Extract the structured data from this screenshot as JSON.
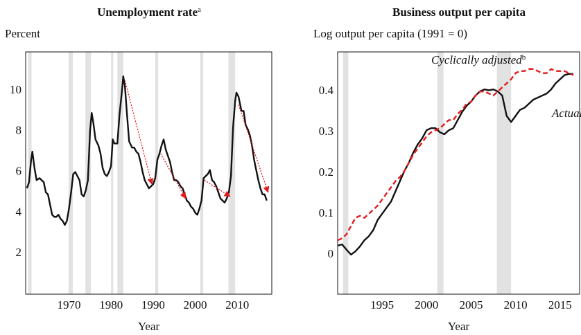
{
  "chart_data": [
    {
      "type": "line",
      "title": "Unemployment rate",
      "title_superscript": "a",
      "y_label": "Percent",
      "x_label": "Year",
      "xlim": [
        1959.7,
        2018.2
      ],
      "xticks": [
        1970,
        1980,
        1990,
        2000,
        2010
      ],
      "ylim": [
        0,
        11.9
      ],
      "yticks": [
        2,
        4,
        6,
        8,
        10
      ],
      "recessions": [
        [
          1960.3,
          1961.1
        ],
        [
          1969.9,
          1970.9
        ],
        [
          1973.9,
          1975.2
        ],
        [
          1980.0,
          1980.5
        ],
        [
          1981.5,
          1982.9
        ],
        [
          1990.5,
          1991.2
        ],
        [
          2001.2,
          2001.9
        ],
        [
          2007.9,
          2009.5
        ]
      ],
      "recession_color": "#e2e2e2",
      "x": [
        1960,
        1960.5,
        1961,
        1961.3,
        1961.8,
        1962.3,
        1963,
        1963.5,
        1964,
        1964.5,
        1965,
        1965.5,
        1966,
        1966.5,
        1967,
        1967.5,
        1968,
        1968.5,
        1969,
        1969.5,
        1970,
        1970.5,
        1971,
        1971.5,
        1972,
        1972.5,
        1973,
        1973.5,
        1974,
        1974.5,
        1975,
        1975.4,
        1975.8,
        1976.3,
        1977,
        1977.5,
        1978,
        1978.5,
        1979,
        1979.5,
        1980,
        1980.4,
        1980.8,
        1981.5,
        1982,
        1982.5,
        1982.9,
        1983.3,
        1983.8,
        1984.3,
        1985,
        1985.5,
        1986,
        1986.5,
        1987,
        1987.5,
        1988,
        1988.5,
        1989,
        1989.5,
        1990,
        1990.5,
        1991,
        1991.5,
        1992,
        1992.5,
        1993,
        1993.5,
        1994,
        1994.5,
        1995,
        1995.5,
        1996,
        1996.5,
        1997,
        1997.5,
        1998,
        1998.5,
        1999,
        1999.5,
        2000,
        2000.5,
        2001,
        2001.5,
        2002,
        2002.5,
        2003,
        2003.5,
        2004,
        2004.5,
        2005,
        2005.5,
        2006,
        2006.5,
        2007,
        2007.5,
        2008,
        2008.5,
        2009,
        2009.5,
        2009.8,
        2010.3,
        2011,
        2011.5,
        2012,
        2012.5,
        2013,
        2013.5,
        2014,
        2014.5,
        2015,
        2015.5,
        2016,
        2016.5,
        2017
      ],
      "series": [
        {
          "color": "#111111",
          "dashed": false,
          "values": [
            5.2,
            5.5,
            6.6,
            7.0,
            6.2,
            5.6,
            5.7,
            5.6,
            5.5,
            5.0,
            4.9,
            4.4,
            3.9,
            3.8,
            3.8,
            3.9,
            3.7,
            3.6,
            3.4,
            3.6,
            4.2,
            5.0,
            5.9,
            6.0,
            5.8,
            5.6,
            4.9,
            4.8,
            5.1,
            5.6,
            8.0,
            8.9,
            8.4,
            7.6,
            7.3,
            6.9,
            6.2,
            5.9,
            5.8,
            6.0,
            6.3,
            7.6,
            7.4,
            7.4,
            8.8,
            9.8,
            10.7,
            10.2,
            8.8,
            7.5,
            7.2,
            7.2,
            7.0,
            6.9,
            6.5,
            6.0,
            5.6,
            5.4,
            5.2,
            5.3,
            5.4,
            5.7,
            6.6,
            6.9,
            7.3,
            7.6,
            7.1,
            6.8,
            6.5,
            6.0,
            5.6,
            5.6,
            5.5,
            5.3,
            5.2,
            4.9,
            4.6,
            4.5,
            4.3,
            4.2,
            4.0,
            3.9,
            4.2,
            4.6,
            5.7,
            5.8,
            5.9,
            6.1,
            5.6,
            5.5,
            5.3,
            5.0,
            4.7,
            4.6,
            4.5,
            4.7,
            5.0,
            5.8,
            8.2,
            9.5,
            9.9,
            9.7,
            9.0,
            9.0,
            8.3,
            8.1,
            7.8,
            7.3,
            6.6,
            6.1,
            5.6,
            5.2,
            4.9,
            4.9,
            4.6
          ]
        }
      ],
      "arrows": [
        {
          "x": [
            1983.3,
            1989.7
          ],
          "y": [
            10.5,
            5.4
          ]
        },
        {
          "x": [
            1991.8,
            1997.7
          ],
          "y": [
            6.9,
            4.7
          ]
        },
        {
          "x": [
            2002.2,
            2008.3
          ],
          "y": [
            5.6,
            4.8
          ]
        },
        {
          "x": [
            2010.3,
            2017.3
          ],
          "y": [
            9.3,
            5.0
          ]
        }
      ],
      "arrow_color": "#e31a1c"
    },
    {
      "type": "line",
      "title": "Business output per capita",
      "y_label": "Log output per capita (1991 = 0)",
      "x_label": "Year",
      "xlim": [
        1990,
        2017.2
      ],
      "xticks": [
        1995,
        2000,
        2005,
        2010,
        2015
      ],
      "ylim": [
        -0.097,
        0.497
      ],
      "yticks": [
        0,
        0.1,
        0.2,
        0.3,
        0.4
      ],
      "recessions": [
        [
          1990.6,
          1991.2
        ],
        [
          2001.2,
          2001.9
        ],
        [
          2007.9,
          2009.5
        ]
      ],
      "recession_color": "#e2e2e2",
      "x": [
        1990,
        1990.5,
        1991,
        1991.5,
        1992,
        1992.5,
        1993,
        1993.5,
        1994,
        1994.5,
        1995,
        1995.5,
        1996,
        1996.5,
        1997,
        1997.5,
        1998,
        1998.5,
        1999,
        1999.5,
        2000,
        2000.5,
        2001,
        2001.5,
        2002,
        2002.5,
        2003,
        2003.5,
        2004,
        2004.5,
        2005,
        2005.5,
        2006,
        2006.5,
        2007,
        2007.5,
        2008,
        2008.5,
        2009,
        2009.5,
        2010,
        2010.5,
        2011,
        2011.5,
        2012,
        2012.5,
        2013,
        2013.5,
        2014,
        2014.5,
        2015,
        2015.5,
        2016,
        2016.5
      ],
      "series": [
        {
          "name": "Actual",
          "color": "#111111",
          "dashed": false,
          "values": [
            0.022,
            0.025,
            0.012,
            0.0,
            0.008,
            0.02,
            0.035,
            0.045,
            0.06,
            0.085,
            0.1,
            0.115,
            0.13,
            0.155,
            0.18,
            0.205,
            0.225,
            0.25,
            0.27,
            0.285,
            0.305,
            0.31,
            0.31,
            0.3,
            0.295,
            0.305,
            0.31,
            0.33,
            0.35,
            0.365,
            0.375,
            0.39,
            0.4,
            0.405,
            0.403,
            0.405,
            0.4,
            0.39,
            0.34,
            0.325,
            0.34,
            0.355,
            0.36,
            0.37,
            0.38,
            0.385,
            0.39,
            0.395,
            0.405,
            0.42,
            0.43,
            0.44,
            0.443,
            0.443
          ]
        },
        {
          "name": "Cyclically adjusted",
          "name_superscript": "b",
          "color": "#e31a1c",
          "dashed": true,
          "values": [
            0.035,
            0.04,
            0.05,
            0.07,
            0.09,
            0.095,
            0.09,
            0.1,
            0.11,
            0.12,
            0.135,
            0.15,
            0.165,
            0.18,
            0.19,
            0.205,
            0.225,
            0.245,
            0.26,
            0.275,
            0.29,
            0.3,
            0.305,
            0.31,
            0.32,
            0.33,
            0.33,
            0.345,
            0.355,
            0.37,
            0.375,
            0.39,
            0.4,
            0.4,
            0.395,
            0.39,
            0.4,
            0.41,
            0.42,
            0.43,
            0.445,
            0.45,
            0.45,
            0.455,
            0.455,
            0.45,
            0.445,
            0.445,
            0.455,
            0.45,
            0.45,
            0.45,
            0.445,
            0.44
          ]
        }
      ]
    }
  ]
}
